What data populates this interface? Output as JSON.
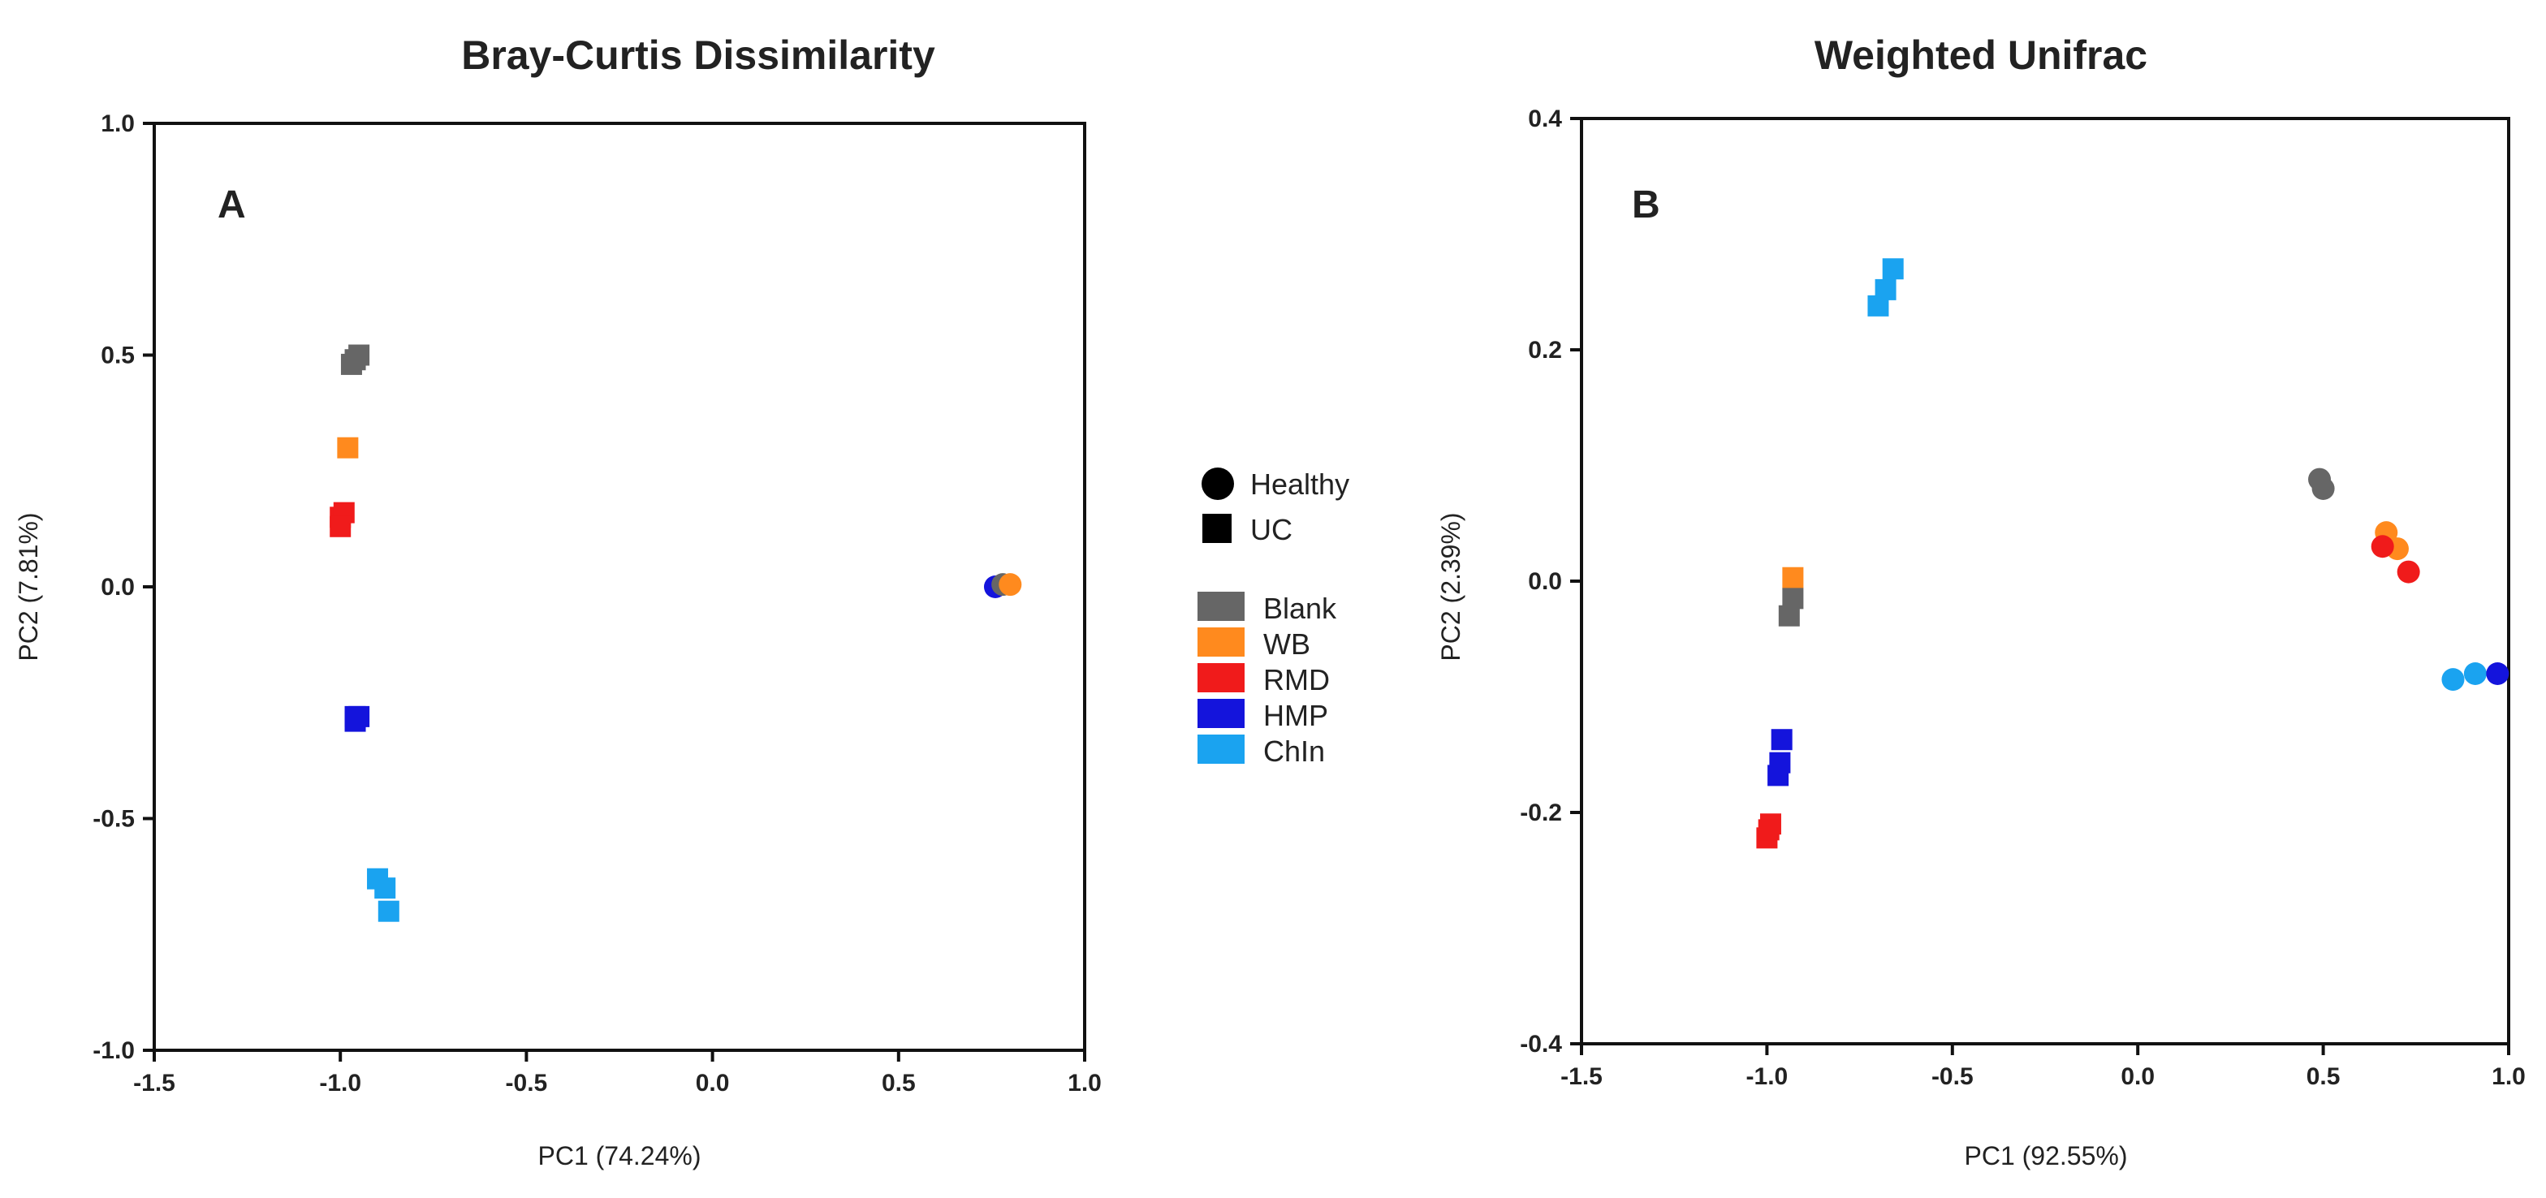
{
  "chart_data": [
    {
      "type": "scatter",
      "title": "Bray-Curtis Dissimilarity",
      "panel_label": "A",
      "xlabel": "PC1 (74.24%)",
      "ylabel": "PC2 (7.81%)",
      "xlim": [
        -1.5,
        1.0
      ],
      "ylim": [
        -1.0,
        1.0
      ],
      "xticks": [
        -1.5,
        -1.0,
        -0.5,
        0.0,
        0.5,
        1.0
      ],
      "xtick_labels": [
        "-1.5",
        "-1.0",
        "-0.5",
        "0.0",
        "0.5",
        "1.0"
      ],
      "yticks": [
        -1.0,
        -0.5,
        0.0,
        0.5,
        1.0
      ],
      "ytick_labels": [
        "-1.0",
        "-0.5",
        "0.0",
        "0.5",
        "1.0"
      ],
      "series": [
        {
          "name": "Blank",
          "shape": "square",
          "group": "UC",
          "points": [
            [
              -0.97,
              0.48
            ],
            [
              -0.96,
              0.49
            ],
            [
              -0.95,
              0.5
            ]
          ]
        },
        {
          "name": "WB",
          "shape": "square",
          "group": "UC",
          "points": [
            [
              -0.98,
              0.3
            ]
          ]
        },
        {
          "name": "RMD",
          "shape": "square",
          "group": "UC",
          "points": [
            [
              -1.0,
              0.15
            ],
            [
              -0.99,
              0.16
            ],
            [
              -1.0,
              0.13
            ]
          ]
        },
        {
          "name": "HMP",
          "shape": "square",
          "group": "UC",
          "points": [
            [
              -0.96,
              -0.28
            ],
            [
              -0.95,
              -0.28
            ],
            [
              -0.96,
              -0.29
            ]
          ]
        },
        {
          "name": "ChIn",
          "shape": "square",
          "group": "UC",
          "points": [
            [
              -0.9,
              -0.63
            ],
            [
              -0.88,
              -0.65
            ],
            [
              -0.87,
              -0.7
            ]
          ]
        },
        {
          "name": "HMP",
          "shape": "circle",
          "group": "Healthy",
          "points": [
            [
              0.76,
              0.0
            ]
          ]
        },
        {
          "name": "Blank",
          "shape": "circle",
          "group": "Healthy",
          "points": [
            [
              0.78,
              0.005
            ]
          ]
        },
        {
          "name": "WB",
          "shape": "circle",
          "group": "Healthy",
          "points": [
            [
              0.8,
              0.005
            ]
          ]
        }
      ]
    },
    {
      "type": "scatter",
      "title": "Weighted Unifrac",
      "panel_label": "B",
      "xlabel": "PC1 (92.55%)",
      "ylabel": "PC2 (2.39%)",
      "xlim": [
        -1.5,
        1.0
      ],
      "ylim": [
        -0.4,
        0.4
      ],
      "xticks": [
        -1.5,
        -1.0,
        -0.5,
        0.0,
        0.5,
        1.0
      ],
      "xtick_labels": [
        "-1.5",
        "-1.0",
        "-0.5",
        "0.0",
        "0.5",
        "1.0"
      ],
      "yticks": [
        -0.4,
        -0.2,
        0.0,
        0.2,
        0.4
      ],
      "ytick_labels": [
        "-0.4",
        "-0.2",
        "0.0",
        "0.2",
        "0.4"
      ],
      "series": [
        {
          "name": "ChIn",
          "shape": "square",
          "group": "UC",
          "points": [
            [
              -0.7,
              0.238
            ],
            [
              -0.68,
              0.252
            ],
            [
              -0.66,
              0.27
            ]
          ]
        },
        {
          "name": "WB",
          "shape": "square",
          "group": "UC",
          "points": [
            [
              -0.93,
              0.003
            ]
          ]
        },
        {
          "name": "Blank",
          "shape": "square",
          "group": "UC",
          "points": [
            [
              -0.93,
              -0.015
            ],
            [
              -0.94,
              -0.03
            ]
          ]
        },
        {
          "name": "HMP",
          "shape": "square",
          "group": "UC",
          "points": [
            [
              -0.96,
              -0.137
            ],
            [
              -0.965,
              -0.157
            ],
            [
              -0.97,
              -0.168
            ]
          ]
        },
        {
          "name": "RMD",
          "shape": "square",
          "group": "UC",
          "points": [
            [
              -0.99,
              -0.21
            ],
            [
              -1.0,
              -0.222
            ],
            [
              -0.995,
              -0.215
            ]
          ]
        },
        {
          "name": "Blank",
          "shape": "circle",
          "group": "Healthy",
          "points": [
            [
              0.49,
              0.088
            ],
            [
              0.5,
              0.08
            ]
          ]
        },
        {
          "name": "WB",
          "shape": "circle",
          "group": "Healthy",
          "points": [
            [
              0.67,
              0.042
            ],
            [
              0.7,
              0.028
            ]
          ]
        },
        {
          "name": "RMD",
          "shape": "circle",
          "group": "Healthy",
          "points": [
            [
              0.66,
              0.03
            ],
            [
              0.73,
              0.008
            ]
          ]
        },
        {
          "name": "ChIn",
          "shape": "circle",
          "group": "Healthy",
          "points": [
            [
              0.85,
              -0.085
            ],
            [
              0.91,
              -0.08
            ]
          ]
        },
        {
          "name": "HMP",
          "shape": "circle",
          "group": "Healthy",
          "points": [
            [
              0.97,
              -0.08
            ]
          ]
        }
      ]
    }
  ],
  "legend": {
    "shapes": [
      {
        "label": "Healthy",
        "shape": "circle"
      },
      {
        "label": "UC",
        "shape": "square"
      }
    ],
    "groups": [
      {
        "label": "Blank",
        "color": "#666666"
      },
      {
        "label": "WB",
        "color": "#ff8a1e"
      },
      {
        "label": "RMD",
        "color": "#f01b1b"
      },
      {
        "label": "HMP",
        "color": "#1414dc"
      },
      {
        "label": "ChIn",
        "color": "#1aa3f0"
      }
    ]
  },
  "colors": {
    "Blank": "#666666",
    "WB": "#ff8a1e",
    "RMD": "#f01b1b",
    "HMP": "#1414dc",
    "ChIn": "#1aa3f0"
  }
}
